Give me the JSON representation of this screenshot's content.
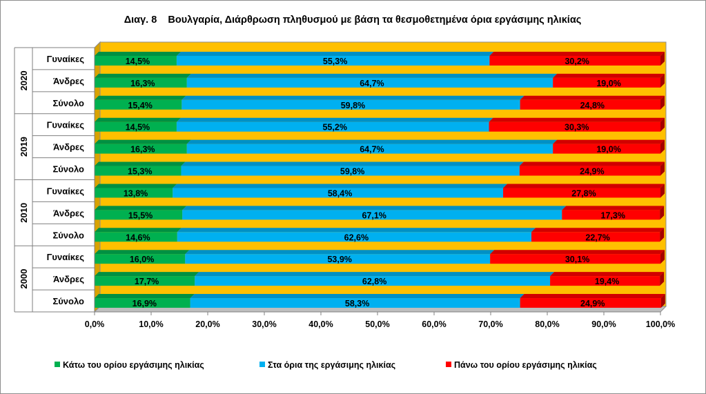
{
  "chart_data": {
    "type": "bar",
    "orientation": "horizontal",
    "stacked": "percent",
    "title": "Διαγ. 8    Βουλγαρία, Διάρθρωση πληθυσμού με βάση τα θεσμοθετημένα όρια εργάσιμης ηλικίας",
    "groups": [
      {
        "label": "2020",
        "categories": [
          "Γυναίκες",
          "Άνδρες",
          "Σύνολο"
        ]
      },
      {
        "label": "2019",
        "categories": [
          "Γυναίκες",
          "Άνδρες",
          "Σύνολο"
        ]
      },
      {
        "label": "2010",
        "categories": [
          "Γυναίκες",
          "Άνδρες",
          "Σύνολο"
        ]
      },
      {
        "label": "2000",
        "categories": [
          "Γυναίκες",
          "Άνδρες",
          "Σύνολο"
        ]
      }
    ],
    "series": [
      {
        "name": "Κάτω του ορίου εργάσιμης ηλικίας",
        "color": "#00b050",
        "values": [
          14.5,
          16.3,
          15.4,
          14.5,
          16.3,
          15.3,
          13.8,
          15.5,
          14.6,
          16.0,
          17.7,
          16.9
        ],
        "labels": [
          "14,5%",
          "16,3%",
          "15,4%",
          "14,5%",
          "16,3%",
          "15,3%",
          "13,8%",
          "15,5%",
          "14,6%",
          "16,0%",
          "17,7%",
          "16,9%"
        ]
      },
      {
        "name": "Στα όρια της εργάσιμης ηλικίας",
        "color": "#00b0f0",
        "values": [
          55.3,
          64.7,
          59.8,
          55.2,
          64.7,
          59.8,
          58.4,
          67.1,
          62.6,
          53.9,
          62.8,
          58.3
        ],
        "labels": [
          "55,3%",
          "64,7%",
          "59,8%",
          "55,2%",
          "64,7%",
          "59,8%",
          "58,4%",
          "67,1%",
          "62,6%",
          "53,9%",
          "62,8%",
          "58,3%"
        ]
      },
      {
        "name": "Πάνω του ορίου εργάσιμης ηλικίας",
        "color": "#ff0000",
        "values": [
          30.2,
          19.0,
          24.8,
          30.3,
          19.0,
          24.9,
          27.8,
          17.3,
          22.7,
          30.1,
          19.4,
          24.9
        ],
        "labels": [
          "30,2%",
          "19,0%",
          "24,8%",
          "30,3%",
          "19,0%",
          "24,9%",
          "27,8%",
          "17,3%",
          "22,7%",
          "30,1%",
          "19,4%",
          "24,9%"
        ]
      }
    ],
    "x_ticks": [
      "0,0%",
      "10,0%",
      "20,0%",
      "30,0%",
      "40,0%",
      "50,0%",
      "60,0%",
      "70,0%",
      "80,0%",
      "90,0%",
      "100,0%"
    ],
    "xlim": [
      0,
      100
    ],
    "legend_position": "bottom",
    "plot_background": "#ffc000",
    "grid": false
  }
}
